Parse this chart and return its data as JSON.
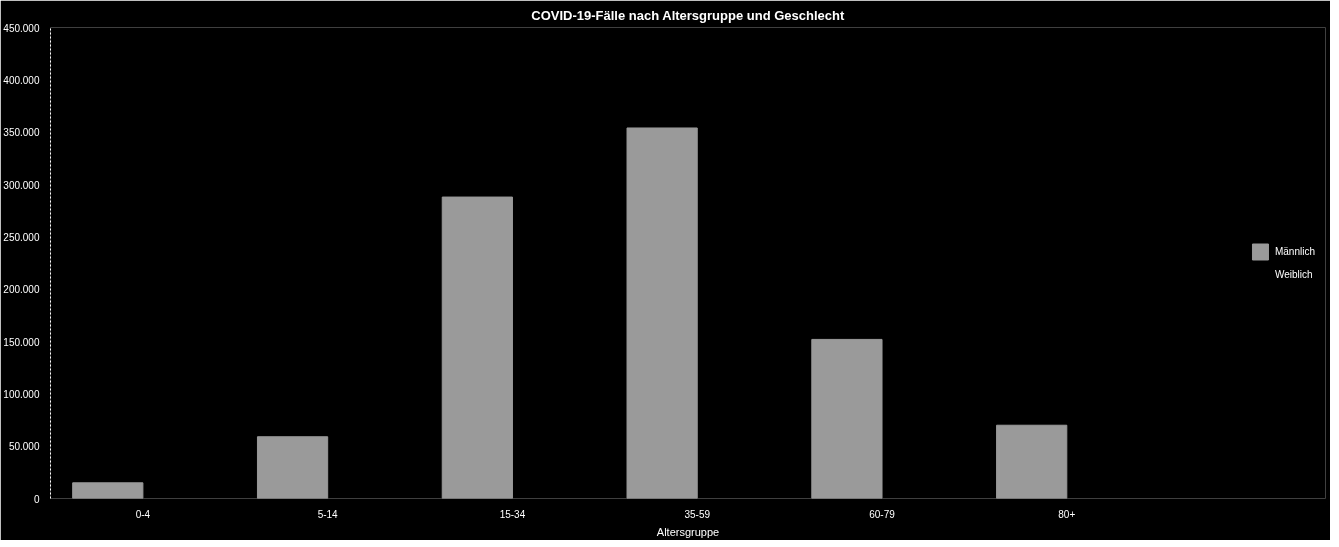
{
  "chart_data": {
    "type": "bar",
    "title": "COVID-19-Fälle nach Altersgruppe und Geschlecht",
    "xlabel": "Altersgruppe",
    "categories": [
      "0-4",
      "5-14",
      "15-34",
      "35-59",
      "60-79",
      "80+"
    ],
    "series": [
      {
        "name": "Männlich",
        "color": "#9a9a9a",
        "values": [
          15000,
          59000,
          288000,
          354000,
          152000,
          70000
        ]
      },
      {
        "name": "Weiblich",
        "values": [
          null,
          null,
          null,
          null,
          null,
          null
        ]
      }
    ],
    "ylim": [
      0,
      450000
    ],
    "yticks": [
      {
        "value": 0,
        "label": "0"
      },
      {
        "value": 50000,
        "label": "50.000"
      },
      {
        "value": 100000,
        "label": "100.000"
      },
      {
        "value": 150000,
        "label": "150.000"
      },
      {
        "value": 200000,
        "label": "200.000"
      },
      {
        "value": 250000,
        "label": "250.000"
      },
      {
        "value": 300000,
        "label": "300.000"
      },
      {
        "value": 350000,
        "label": "350.000"
      },
      {
        "value": 400000,
        "label": "400.000"
      },
      {
        "value": 450000,
        "label": "450.000"
      }
    ],
    "grid": false,
    "legend": "right"
  }
}
